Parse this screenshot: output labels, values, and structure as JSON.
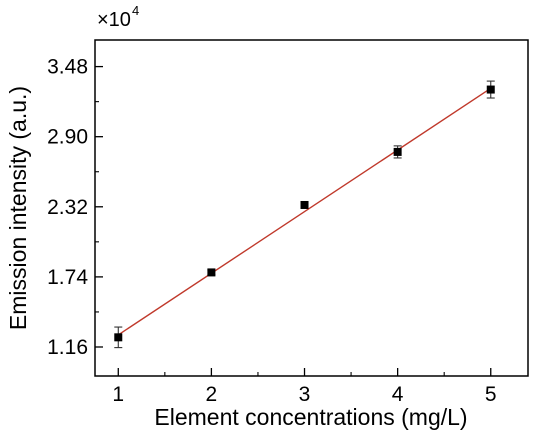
{
  "chart_data": {
    "type": "scatter",
    "xlabel": "Element concentrations (mg/L)",
    "ylabel": "Emission intensity (a.u.)",
    "y_multiplier": {
      "base": "×10",
      "exponent": "4"
    },
    "xlim": [
      0.75,
      5.4
    ],
    "ylim": [
      0.92,
      3.7
    ],
    "x_ticks": [
      1,
      2,
      3,
      4,
      5
    ],
    "x_tick_labels": [
      "1",
      "2",
      "3",
      "4",
      "5"
    ],
    "y_ticks": [
      1.16,
      1.74,
      2.32,
      2.9,
      3.48
    ],
    "y_tick_labels": [
      "1.16",
      "1.74",
      "2.32",
      "2.90",
      "3.48"
    ],
    "y_minor_ticks": [
      1.45,
      2.03,
      2.61,
      3.19
    ],
    "grid": false,
    "series": [
      {
        "marker": "square",
        "color": "#000000",
        "x": [
          1,
          2,
          3,
          4,
          5
        ],
        "y": [
          1.24,
          1.777,
          2.335,
          2.774,
          3.29
        ],
        "yerr": [
          0.085,
          0.02,
          0.025,
          0.05,
          0.07
        ]
      }
    ],
    "fit_line": {
      "color": "#c0392b",
      "x": [
        1,
        5
      ],
      "y": [
        1.26,
        3.3
      ]
    }
  }
}
